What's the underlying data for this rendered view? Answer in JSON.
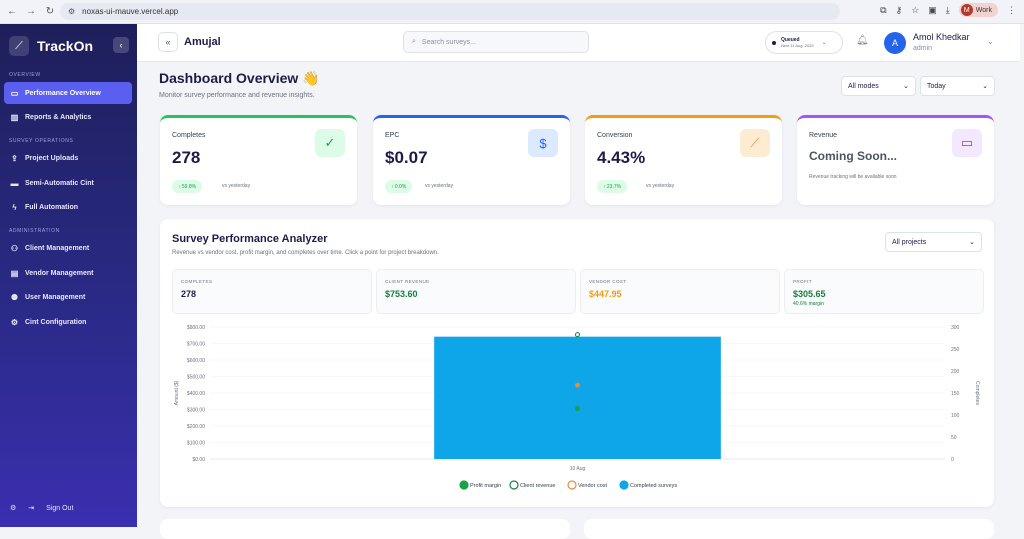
{
  "browser": {
    "url": "noxas-ui-mauve.vercel.app",
    "profile_initial": "M",
    "profile_label": "Work"
  },
  "sidebar": {
    "brand": "TrackOn",
    "sections": {
      "overview": "OVERVIEW",
      "survey_operations": "SURVEY OPERATIONS",
      "administration": "ADMINISTRATION"
    },
    "items": [
      {
        "label": "Performance Overview",
        "icon": "dashboard-icon",
        "active": true
      },
      {
        "label": "Reports & Analytics",
        "icon": "bar-chart-icon",
        "active": false
      },
      {
        "label": "Project Uploads",
        "icon": "upload-icon",
        "active": false
      },
      {
        "label": "Semi-Automatic Cint",
        "icon": "car-icon",
        "active": false
      },
      {
        "label": "Full Automation",
        "icon": "bolt-icon",
        "active": false
      },
      {
        "label": "Client Management",
        "icon": "users-icon",
        "active": false
      },
      {
        "label": "Vendor Management",
        "icon": "building-icon",
        "active": false
      },
      {
        "label": "User Management",
        "icon": "user-cog-icon",
        "active": false
      },
      {
        "label": "Cint Configuration",
        "icon": "settings-icon",
        "active": false
      }
    ],
    "sign_out": "Sign Out"
  },
  "topbar": {
    "breadcrumb": "Amujal",
    "search_placeholder": "Search surveys...",
    "queue_status": "Queued",
    "queue_next": "Next 11 Aug, 2025",
    "user_initial": "A",
    "user_name": "Amol Khedkar",
    "user_role": "admin"
  },
  "page": {
    "title": "Dashboard Overview 👋",
    "subtitle": "Monitor survey performance and revenue insights.",
    "mode_filter": "All modes",
    "date_filter": "Today"
  },
  "kpis": [
    {
      "label": "Completes",
      "value": "278",
      "delta": "↑ 59.8%",
      "vs": "vs yesterday",
      "color": "#22c55e",
      "icon": "check-circle-icon"
    },
    {
      "label": "EPC",
      "value": "$0.07",
      "delta": "↑ 0.0%",
      "vs": "vs yesterday",
      "color": "#2563eb",
      "icon": "dollar-icon"
    },
    {
      "label": "Conversion",
      "value": "4.43%",
      "delta": "↑ 23.7%",
      "vs": "vs yesterday",
      "color": "#f59e0b",
      "icon": "trend-up-icon"
    },
    {
      "label": "Revenue",
      "value": "Coming Soon...",
      "note": "Revenue tracking will be available soon",
      "color": "#a855f7",
      "icon": "wallet-icon"
    }
  ],
  "analyzer": {
    "title": "Survey Performance Analyzer",
    "subtitle": "Revenue vs vendor cost, profit margin, and completes over time. Click a point for project breakdown.",
    "project_filter": "All projects",
    "metrics": [
      {
        "label": "COMPLETES",
        "value": "278",
        "color": "#1e1b4b"
      },
      {
        "label": "CLIENT REVENUE",
        "value": "$753.60",
        "color": "#15803d"
      },
      {
        "label": "VENDOR COST",
        "value": "$447.95",
        "color": "#f59e0b"
      },
      {
        "label": "PROFIT",
        "value": "$305.65",
        "margin": "40.6% margin",
        "color": "#15803d"
      }
    ]
  },
  "chart_data": {
    "type": "bar",
    "categories": [
      "10 Aug"
    ],
    "ylabel": "Amount ($)",
    "y2label": "Completes",
    "ylim": [
      0,
      800
    ],
    "y2lim": [
      0,
      300
    ],
    "y_ticks": [
      "$0.00",
      "$100.00",
      "$200.00",
      "$300.00",
      "$400.00",
      "$500.00",
      "$600.00",
      "$700.00",
      "$800.00"
    ],
    "y2_ticks": [
      "0",
      "50",
      "100",
      "150",
      "200",
      "250",
      "300"
    ],
    "series": [
      {
        "name": "Completed surveys",
        "kind": "bar",
        "axis": "right",
        "values": [
          278
        ],
        "color": "#0ea5e9"
      },
      {
        "name": "Client revenue",
        "kind": "point",
        "axis": "left",
        "values": [
          753.6
        ],
        "color": "#15803d"
      },
      {
        "name": "Vendor cost",
        "kind": "point",
        "axis": "left",
        "values": [
          447.95
        ],
        "color": "#ea8a3c"
      },
      {
        "name": "Profit margin",
        "kind": "point",
        "axis": "left",
        "values": [
          305.65
        ],
        "color": "#16a34a"
      }
    ],
    "legend": [
      "Profit margin",
      "Client revenue",
      "Vendor cost",
      "Completed surveys"
    ],
    "legend_position": "bottom"
  }
}
